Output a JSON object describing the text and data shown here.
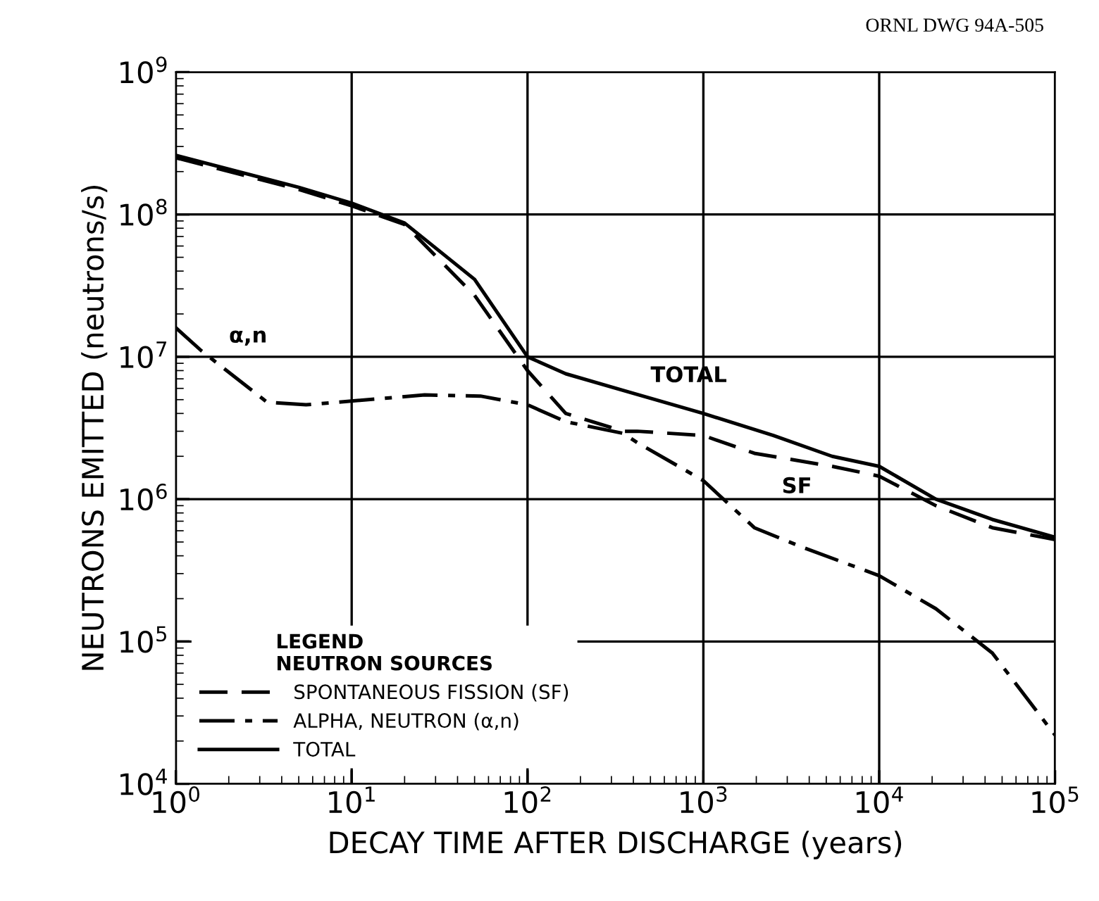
{
  "chart_data": {
    "type": "line",
    "xlabel": "DECAY TIME AFTER DISCHARGE (years)",
    "ylabel": "NEUTRONS EMITTED (neutrons/s)",
    "log": "xy",
    "grid": true,
    "legend": "bottom left",
    "legend_title": "LEGEND\nNEUTRON SOURCES",
    "xlim": [
      1,
      100000
    ],
    "ylim": [
      10000,
      1000000000
    ],
    "xticks": [
      {
        "value": 1,
        "label": "10$^{0}$"
      },
      {
        "value": 10,
        "label": "10$^{1}$"
      },
      {
        "value": 100,
        "label": "10$^{2}$"
      },
      {
        "value": 1000,
        "label": "10$^{3}$"
      },
      {
        "value": 10000,
        "label": "10$^{4}$"
      },
      {
        "value": 100000,
        "label": "10$^{5}$"
      }
    ],
    "yticks": [
      {
        "value": 10000,
        "label": "10$^{4}$"
      },
      {
        "value": 100000,
        "label": "10$^{5}$"
      },
      {
        "value": 1000000,
        "label": "10$^{6}$"
      },
      {
        "value": 10000000,
        "label": "10$^{7}$"
      },
      {
        "value": 100000000,
        "label": "10$^{8}$"
      },
      {
        "value": 1000000000,
        "label": "10$^{9}$"
      }
    ],
    "annotations": [
      "ORNL DWG 94A-505",
      {
        "text": "α,n",
        "x": 1.4,
        "y": 11000000
      },
      {
        "text": "TOTAL",
        "x": 350,
        "y": 5800000
      },
      {
        "text": "SF",
        "x": 1950,
        "y": 2100000
      }
    ],
    "series": [
      {
        "name": "SPONTANEOUS FISSION (SF)",
        "color": "#000000",
        "line_style": "dashed",
        "x": [
          1,
          5,
          10,
          20,
          50,
          100,
          165,
          350,
          420,
          1000,
          1950,
          5400,
          10000,
          21000,
          44000,
          100000
        ],
        "values": [
          250000000,
          150000000,
          115000000,
          85000000,
          27000000,
          8000000,
          4000000,
          3000000,
          3000000,
          2800000,
          2100000,
          1700000,
          1450000,
          900000,
          630000,
          520000
        ]
      },
      {
        "name": "ALPHA, NEUTRON (α,n)",
        "color": "#000000",
        "line_style": "dashdot",
        "x": [
          1,
          1.4,
          3.3,
          5.5,
          26,
          54,
          100,
          165,
          350,
          420,
          1000,
          1950,
          3650,
          10000,
          21000,
          44000,
          100000
        ],
        "values": [
          16000000,
          11000000,
          4800000,
          4600000,
          5400000,
          5300000,
          4600000,
          3500000,
          2900000,
          2500000,
          1350000,
          630000,
          460000,
          290000,
          170000,
          83000,
          22000
        ]
      },
      {
        "name": "TOTAL",
        "color": "#000000",
        "line_style": "solid",
        "x": [
          1,
          5,
          10,
          20,
          50,
          100,
          165,
          350,
          1000,
          2500,
          5400,
          10000,
          21000,
          44000,
          100000
        ],
        "values": [
          260000000,
          155000000,
          120000000,
          87000000,
          35000000,
          10000000,
          7600000,
          5800000,
          4000000,
          2800000,
          2000000,
          1700000,
          1000000,
          720000,
          540000
        ]
      }
    ]
  }
}
